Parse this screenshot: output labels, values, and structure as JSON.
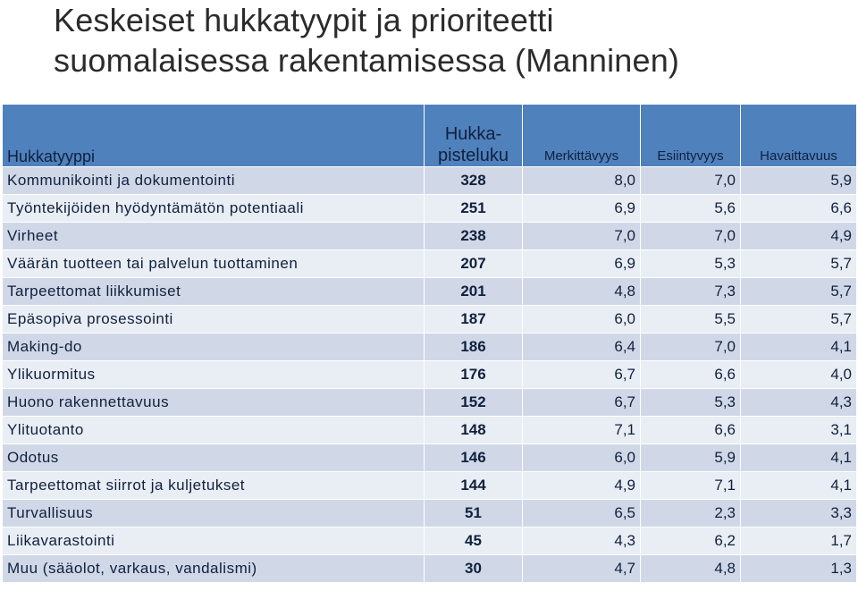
{
  "title": {
    "line1": "Keskeiset hukkatyypit ja prioriteetti",
    "line2": "suomalaisessa rakentamisessa (Manninen)"
  },
  "table": {
    "headers": {
      "name": "Hukkatyyppi",
      "points_line1": "Hukka-",
      "points_line2": "pisteluku",
      "significance": "Merkittävyys",
      "occurrence": "Esiintyvyys",
      "detectability": "Havaittavuus"
    },
    "rows": [
      {
        "name": "Kommunikointi ja dokumentointi",
        "points": "328",
        "significance": "8,0",
        "occurrence": "7,0",
        "detectability": "5,9"
      },
      {
        "name": "Työntekijöiden hyödyntämätön potentiaali",
        "points": "251",
        "significance": "6,9",
        "occurrence": "5,6",
        "detectability": "6,6"
      },
      {
        "name": "Virheet",
        "points": "238",
        "significance": "7,0",
        "occurrence": "7,0",
        "detectability": "4,9"
      },
      {
        "name": "Väärän tuotteen tai palvelun tuottaminen",
        "points": "207",
        "significance": "6,9",
        "occurrence": "5,3",
        "detectability": "5,7"
      },
      {
        "name": "Tarpeettomat liikkumiset",
        "points": "201",
        "significance": "4,8",
        "occurrence": "7,3",
        "detectability": "5,7"
      },
      {
        "name": "Epäsopiva prosessointi",
        "points": "187",
        "significance": "6,0",
        "occurrence": "5,5",
        "detectability": "5,7"
      },
      {
        "name": "Making-do",
        "points": "186",
        "significance": "6,4",
        "occurrence": "7,0",
        "detectability": "4,1"
      },
      {
        "name": "Ylikuormitus",
        "points": "176",
        "significance": "6,7",
        "occurrence": "6,6",
        "detectability": "4,0"
      },
      {
        "name": "Huono rakennettavuus",
        "points": "152",
        "significance": "6,7",
        "occurrence": "5,3",
        "detectability": "4,3"
      },
      {
        "name": "Ylituotanto",
        "points": "148",
        "significance": "7,1",
        "occurrence": "6,6",
        "detectability": "3,1"
      },
      {
        "name": "Odotus",
        "points": "146",
        "significance": "6,0",
        "occurrence": "5,9",
        "detectability": "4,1"
      },
      {
        "name": "Tarpeettomat siirrot ja kuljetukset",
        "points": "144",
        "significance": "4,9",
        "occurrence": "7,1",
        "detectability": "4,1"
      },
      {
        "name": "Turvallisuus",
        "points": "51",
        "significance": "6,5",
        "occurrence": "2,3",
        "detectability": "3,3"
      },
      {
        "name": "Liikavarastointi",
        "points": "45",
        "significance": "4,3",
        "occurrence": "6,2",
        "detectability": "1,7"
      },
      {
        "name": "Muu (sääolot, varkaus, vandalismi)",
        "points": "30",
        "significance": "4,7",
        "occurrence": "4,8",
        "detectability": "1,3"
      }
    ]
  },
  "colors": {
    "header_bg": "#4f81bd",
    "row_odd": "#d0d8e8",
    "row_even": "#e9edf4",
    "text": "#10213d"
  }
}
